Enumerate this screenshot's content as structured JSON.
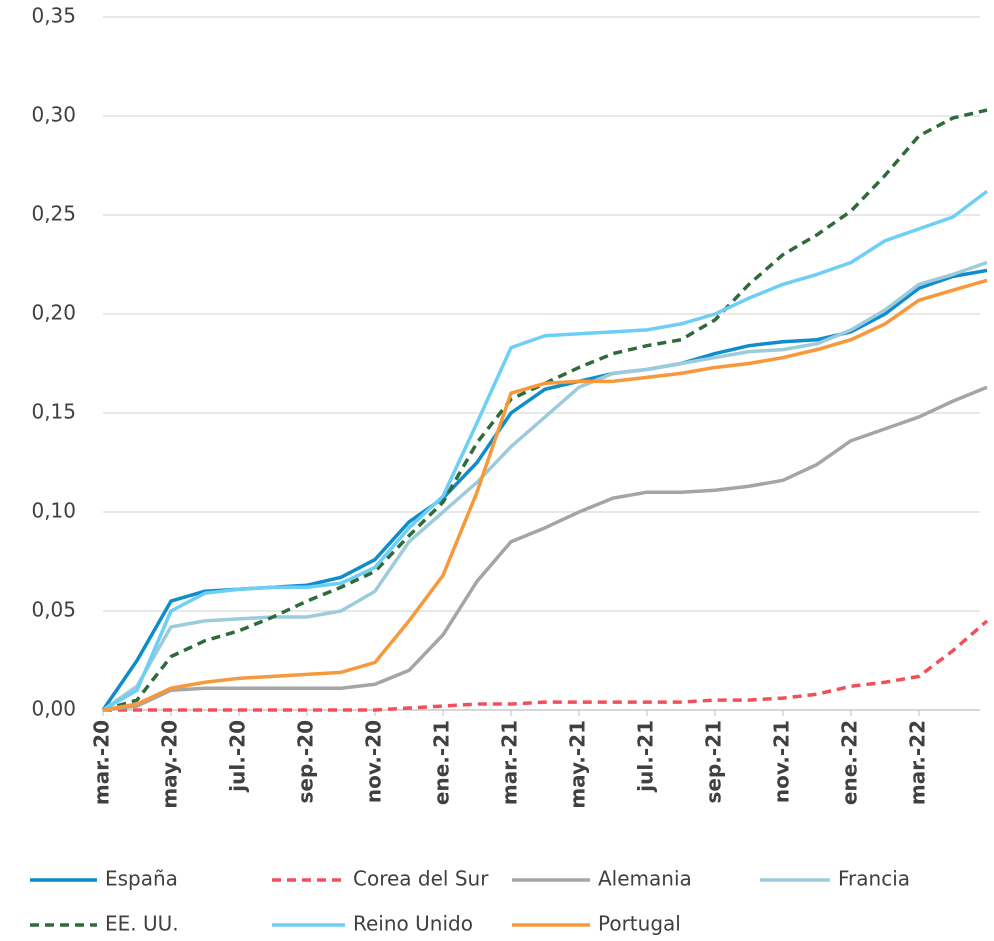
{
  "chart_data": {
    "type": "line",
    "categories": [
      "mar.-20",
      null,
      "may.-20",
      null,
      "jul.-20",
      null,
      "sep.-20",
      null,
      "nov.-20",
      null,
      "ene.-21",
      null,
      "mar.-21",
      null,
      "may.-21",
      null,
      "jul.-21",
      null,
      "sep.-21",
      null,
      "nov.-21",
      null,
      "ene.-22",
      null,
      "mar.-22",
      null,
      null
    ],
    "ylim": [
      0,
      0.35
    ],
    "yticks": [
      {
        "value": 0,
        "label": "0,00"
      },
      {
        "value": 0.05,
        "label": "0,05"
      },
      {
        "value": 0.1,
        "label": "0,10"
      },
      {
        "value": 0.15,
        "label": "0,15"
      },
      {
        "value": 0.2,
        "label": "0,20"
      },
      {
        "value": 0.25,
        "label": "0,25"
      },
      {
        "value": 0.3,
        "label": "0,30"
      },
      {
        "value": 0.35,
        "label": "0,35"
      }
    ],
    "grid": true,
    "legend": "bottom",
    "series": [
      {
        "name": "España",
        "color": "#0e8ccc",
        "dashed": false,
        "values": [
          0,
          0.025,
          0.055,
          0.06,
          0.061,
          0.062,
          0.063,
          0.067,
          0.076,
          0.095,
          0.107,
          0.125,
          0.15,
          0.162,
          0.166,
          0.17,
          0.172,
          0.175,
          0.18,
          0.184,
          0.186,
          0.187,
          0.191,
          0.2,
          0.213,
          0.219,
          0.222
        ]
      },
      {
        "name": "Corea del Sur",
        "color": "#f0505a",
        "dashed": true,
        "values": [
          0,
          0,
          0,
          0,
          0,
          0,
          0,
          0,
          0,
          0.001,
          0.002,
          0.003,
          0.003,
          0.004,
          0.004,
          0.004,
          0.004,
          0.004,
          0.005,
          0.005,
          0.006,
          0.008,
          0.012,
          0.014,
          0.017,
          0.03,
          0.045
        ]
      },
      {
        "name": "Alemania",
        "color": "#a5a5a5",
        "dashed": false,
        "values": [
          0,
          0.002,
          0.01,
          0.011,
          0.011,
          0.011,
          0.011,
          0.011,
          0.013,
          0.02,
          0.038,
          0.065,
          0.085,
          0.092,
          0.1,
          0.107,
          0.11,
          0.11,
          0.111,
          0.113,
          0.116,
          0.124,
          0.136,
          0.142,
          0.148,
          0.156,
          0.163
        ]
      },
      {
        "name": "Francia",
        "color": "#9ccbdc",
        "dashed": false,
        "values": [
          0,
          0.012,
          0.042,
          0.045,
          0.046,
          0.047,
          0.047,
          0.05,
          0.06,
          0.085,
          0.1,
          0.115,
          0.133,
          0.148,
          0.163,
          0.17,
          0.172,
          0.175,
          0.178,
          0.181,
          0.182,
          0.185,
          0.192,
          0.202,
          0.215,
          0.22,
          0.226
        ]
      },
      {
        "name": "EE. UU.",
        "color": "#2f6a3a",
        "dashed": true,
        "values": [
          0,
          0.005,
          0.027,
          0.035,
          0.04,
          0.047,
          0.055,
          0.062,
          0.07,
          0.088,
          0.105,
          0.135,
          0.157,
          0.165,
          0.173,
          0.18,
          0.184,
          0.187,
          0.197,
          0.215,
          0.23,
          0.24,
          0.252,
          0.27,
          0.29,
          0.299,
          0.303
        ]
      },
      {
        "name": "Reino Unido",
        "color": "#6dcff6",
        "dashed": false,
        "values": [
          0,
          0.01,
          0.05,
          0.059,
          0.061,
          0.062,
          0.062,
          0.064,
          0.072,
          0.092,
          0.108,
          0.145,
          0.183,
          0.189,
          0.19,
          0.191,
          0.192,
          0.195,
          0.2,
          0.208,
          0.215,
          0.22,
          0.226,
          0.237,
          0.243,
          0.249,
          0.262
        ]
      },
      {
        "name": "Portugal",
        "color": "#f7983a",
        "dashed": false,
        "values": [
          0,
          0.003,
          0.011,
          0.014,
          0.016,
          0.017,
          0.018,
          0.019,
          0.024,
          0.045,
          0.068,
          0.11,
          0.16,
          0.165,
          0.166,
          0.166,
          0.168,
          0.17,
          0.173,
          0.175,
          0.178,
          0.182,
          0.187,
          0.195,
          0.207,
          0.212,
          0.217
        ]
      }
    ]
  }
}
